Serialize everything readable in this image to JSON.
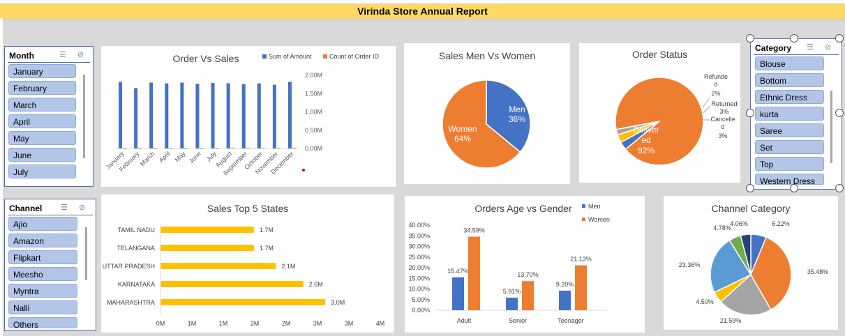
{
  "report_title": "Virinda Store Annual Report",
  "slicers": {
    "month": {
      "title": "Month",
      "items": [
        "January",
        "February",
        "March",
        "April",
        "May",
        "June",
        "July"
      ]
    },
    "channel": {
      "title": "Channel",
      "items": [
        "Ajio",
        "Amazon",
        "Flipkart",
        "Meesho",
        "Myntra",
        "Nalli",
        "Others"
      ]
    },
    "category": {
      "title": "Category",
      "items": [
        "Blouse",
        "Bottom",
        "Ethnic Dress",
        "kurta",
        "Saree",
        "Set",
        "Top",
        "Western Dress"
      ]
    }
  },
  "charts": {
    "order_vs_sales": {
      "title": "Order Vs Sales",
      "legend": [
        "Sum of Amount",
        "Count of Order ID"
      ],
      "y_ticks": [
        "2.00M",
        "1.50M",
        "1.00M",
        "0.50M",
        "0.00M"
      ]
    },
    "men_women": {
      "title": "Sales Men Vs Women",
      "labels": [
        {
          "name": "Men",
          "pct": "36%"
        },
        {
          "name": "Women",
          "pct": "64%"
        }
      ]
    },
    "order_status": {
      "title": "Order Status"
    },
    "top_states": {
      "title": "Sales Top 5 States"
    },
    "age_gender": {
      "title": "Orders Age vs Gender",
      "legend": [
        "Men",
        "Women"
      ]
    },
    "channel_category": {
      "title": "Channel Category"
    }
  },
  "chart_data": [
    {
      "type": "bar",
      "title": "Order Vs Sales",
      "categories": [
        "January",
        "February",
        "March",
        "April",
        "May",
        "June",
        "July",
        "August",
        "September",
        "October",
        "November",
        "December"
      ],
      "series": [
        {
          "name": "Sum of Amount",
          "values": [
            1.82,
            1.65,
            1.8,
            1.78,
            1.8,
            1.77,
            1.79,
            1.78,
            1.76,
            1.78,
            1.74,
            1.82
          ]
        },
        {
          "name": "Count of Order ID",
          "values": [
            0.01,
            0.01,
            0.01,
            0.01,
            0.01,
            0.01,
            0.01,
            0.01,
            0.01,
            0.01,
            0.01,
            0.01
          ]
        }
      ],
      "ylim": [
        0,
        2.0
      ],
      "unit": "M",
      "colors": [
        "#4472c4",
        "#ed7d31"
      ]
    },
    {
      "type": "pie",
      "title": "Sales Men Vs Women",
      "categories": [
        "Men",
        "Women"
      ],
      "values": [
        36,
        64
      ],
      "colors": [
        "#4472c4",
        "#ed7d31"
      ]
    },
    {
      "type": "pie",
      "title": "Order Status",
      "categories": [
        "Delivered",
        "Cancelled",
        "Returned",
        "Refunded"
      ],
      "values": [
        92,
        3,
        3,
        2
      ],
      "colors": [
        "#ed7d31",
        "#4472c4",
        "#ffc000",
        "#a5a5a5"
      ]
    },
    {
      "type": "bar",
      "title": "Sales Top 5 States",
      "categories": [
        "TAMIL NADU",
        "TELANGANA",
        "UTTAR PRADESH",
        "KARNATAKA",
        "MAHARASHTRA"
      ],
      "values": [
        1.7,
        1.7,
        2.1,
        2.6,
        3.0
      ],
      "data_labels": [
        "1.7M",
        "1.7M",
        "2.1M",
        "2.6M",
        "3.0M"
      ],
      "x_ticks": [
        "0M",
        "1M",
        "1M",
        "2M",
        "2M",
        "3M",
        "3M",
        "4M"
      ],
      "xlim": [
        0,
        4
      ],
      "color": "#ffc000"
    },
    {
      "type": "bar",
      "title": "Orders Age vs Gender",
      "categories": [
        "Adult",
        "Senior",
        "Teenager"
      ],
      "series": [
        {
          "name": "Men",
          "values": [
            15.47,
            5.91,
            9.2
          ]
        },
        {
          "name": "Women",
          "values": [
            34.59,
            13.7,
            21.13
          ]
        }
      ],
      "data_labels": {
        "Men": [
          "15.47%",
          "5.91%",
          "9.20%"
        ],
        "Women": [
          "34.59%",
          "13.70%",
          "21.13%"
        ]
      },
      "y_ticks": [
        "40.00%",
        "35.00%",
        "30.00%",
        "25.00%",
        "20.00%",
        "15.00%",
        "10.00%",
        "5.00%",
        "0.00%"
      ],
      "ylim": [
        0,
        40
      ],
      "colors": [
        "#4472c4",
        "#ed7d31"
      ]
    },
    {
      "type": "pie",
      "title": "Channel Category",
      "values": [
        6.22,
        35.48,
        21.59,
        4.5,
        23.36,
        4.78,
        4.06
      ],
      "labels": [
        "6.22%",
        "35.48%",
        "21.59%",
        "4.50%",
        "23.36%",
        "4.78%",
        "4.06%"
      ],
      "colors": [
        "#4472c4",
        "#ed7d31",
        "#a5a5a5",
        "#ffc000",
        "#5b9bd5",
        "#70ad47",
        "#264478"
      ]
    }
  ]
}
